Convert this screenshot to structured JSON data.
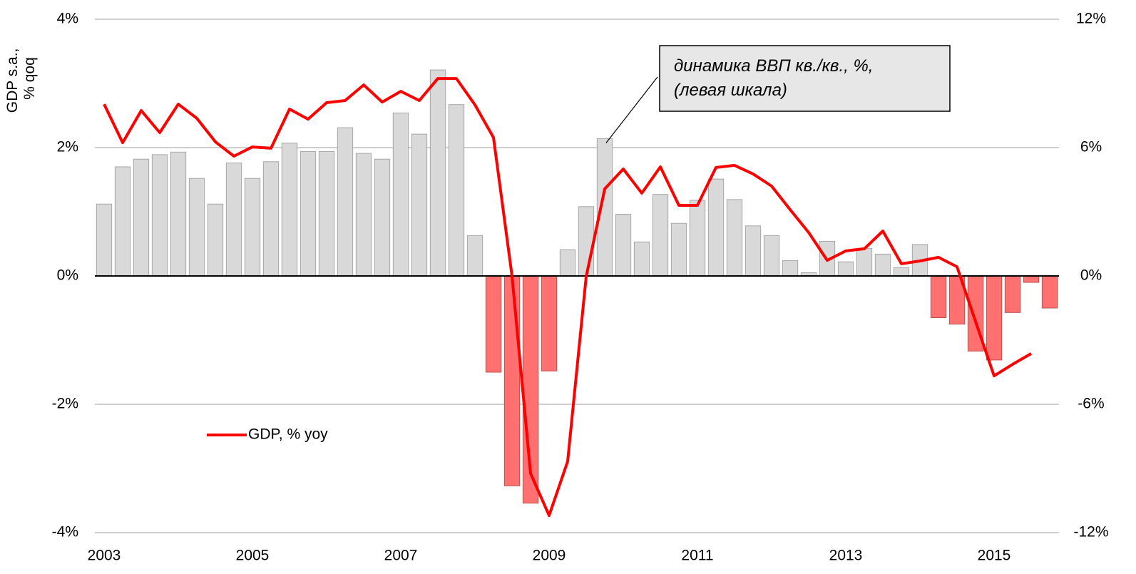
{
  "chart_data": {
    "type": "bar_line",
    "ylabel": [
      "GDP s.a.,",
      "% qoq"
    ],
    "annotation": [
      "динамика ВВП кв./кв., %,",
      "(левая шкала)"
    ],
    "categories": [
      "2003",
      null,
      null,
      null,
      null,
      null,
      null,
      null,
      "2005",
      null,
      null,
      null,
      null,
      null,
      null,
      null,
      "2007",
      null,
      null,
      null,
      null,
      null,
      null,
      null,
      "2009",
      null,
      null,
      null,
      null,
      null,
      null,
      null,
      "2011",
      null,
      null,
      null,
      null,
      null,
      null,
      null,
      "2013",
      null,
      null,
      null,
      null,
      null,
      null,
      null,
      "2015",
      null,
      null,
      null
    ],
    "series": [
      {
        "type": "bar",
        "color": "#d9d9d9",
        "edge_color": "#a6a6a6",
        "negative_color": "#ff7070",
        "negative_edge_color": "#c0504d",
        "values": [
          1.12,
          1.7,
          1.82,
          1.89,
          1.93,
          1.52,
          1.12,
          1.76,
          1.52,
          1.78,
          2.07,
          1.94,
          1.94,
          2.31,
          1.91,
          1.82,
          2.54,
          2.21,
          3.21,
          2.67,
          0.63,
          -1.5,
          -3.27,
          -3.54,
          -1.48,
          0.41,
          1.08,
          2.14,
          0.96,
          0.53,
          1.27,
          0.82,
          1.18,
          1.51,
          1.19,
          0.78,
          0.63,
          0.24,
          0.05,
          0.54,
          0.22,
          0.43,
          0.34,
          0.13,
          0.49,
          -0.65,
          -0.75,
          -1.17,
          -1.31,
          -0.57,
          -0.1,
          -0.5
        ]
      },
      {
        "type": "line",
        "name": "GDP, % yoy",
        "color": "#ff0000",
        "axis": "y2",
        "values": [
          8.03,
          6.23,
          7.73,
          6.7,
          8.03,
          7.37,
          6.27,
          5.6,
          6.03,
          5.97,
          7.8,
          7.33,
          8.1,
          8.2,
          8.93,
          8.13,
          8.63,
          8.2,
          9.23,
          9.23,
          8.0,
          6.47,
          0,
          -9.23,
          -11.2,
          -8.67,
          -0.03,
          4.07,
          5.0,
          3.87,
          5.1,
          3.3,
          3.3,
          5.07,
          5.17,
          4.77,
          4.2,
          3.1,
          2.03,
          0.73,
          1.17,
          1.27,
          2.1,
          0.57,
          0.7,
          0.87,
          0.43,
          -2.13,
          -4.67,
          -4.13,
          -3.63,
          null
        ]
      }
    ],
    "annotation_target": 27,
    "ylim": [
      -4,
      4
    ],
    "yticks": [
      {
        "value": -4,
        "label": "-4%"
      },
      {
        "value": -2,
        "label": "-2%"
      },
      {
        "value": 0,
        "label": "0%"
      },
      {
        "value": 2,
        "label": "2%"
      },
      {
        "value": 4,
        "label": "4%"
      }
    ],
    "y2lim": [
      -12,
      12
    ],
    "y2ticks": [
      {
        "value": -12,
        "label": "-12%"
      },
      {
        "value": -6,
        "label": "-6%"
      },
      {
        "value": 0,
        "label": "0%"
      },
      {
        "value": 6,
        "label": "6%"
      },
      {
        "value": 12,
        "label": "12%"
      }
    ],
    "grid": true,
    "legend": "lower left"
  }
}
